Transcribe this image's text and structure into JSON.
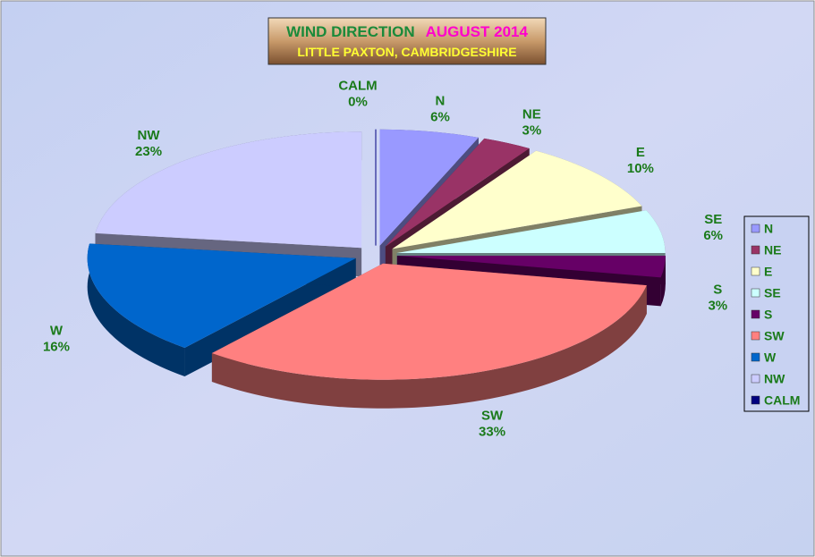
{
  "chart_data": {
    "type": "pie3d",
    "title": "WIND DIRECTION",
    "title_date": "AUGUST 2014",
    "subtitle": "LITTLE PAXTON, CAMBRIDGESHIRE",
    "categories": [
      "N",
      "NE",
      "E",
      "SE",
      "S",
      "SW",
      "W",
      "NW",
      "CALM"
    ],
    "values": [
      6,
      3,
      10,
      6,
      3,
      33,
      16,
      23,
      0
    ],
    "value_labels": [
      "6%",
      "3%",
      "10%",
      "6%",
      "3%",
      "33%",
      "16%",
      "23%",
      "0%"
    ],
    "colors": [
      "#9999ff",
      "#993366",
      "#ffffcc",
      "#ccffff",
      "#660066",
      "#ff8080",
      "#0066cc",
      "#ccccff",
      "#000080"
    ],
    "legend": "right"
  }
}
